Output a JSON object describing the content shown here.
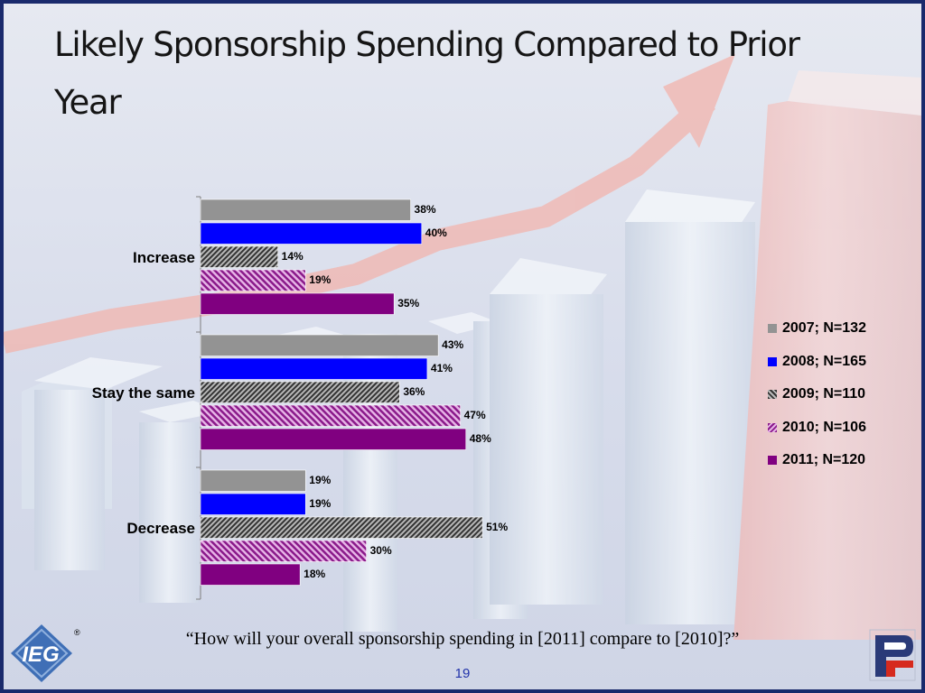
{
  "title": "Likely Sponsorship Spending Compared to Prior Year",
  "question": "“How will your overall sponsorship spending in [2011] compare to [2010]?”",
  "page_number": "19",
  "logos": {
    "left": "IEG",
    "left_mark": "®",
    "right": "PF"
  },
  "chart_data": {
    "type": "bar",
    "orientation": "horizontal",
    "categories": [
      "Increase",
      "Stay the same",
      "Decrease"
    ],
    "series": [
      {
        "name": "2007; N=132",
        "values": [
          38,
          43,
          19
        ],
        "color": "#939393",
        "pattern": "solid"
      },
      {
        "name": "2008; N=165",
        "values": [
          40,
          41,
          19
        ],
        "color": "#0000ff",
        "pattern": "solid"
      },
      {
        "name": "2009; N=110",
        "values": [
          14,
          36,
          51
        ],
        "color": "#444444",
        "pattern": "hatch-dark"
      },
      {
        "name": "2010; N=106",
        "values": [
          19,
          47,
          30
        ],
        "color": "#a020a0",
        "pattern": "hatch-purple"
      },
      {
        "name": "2011; N=120",
        "values": [
          35,
          48,
          18
        ],
        "color": "#800080",
        "pattern": "solid"
      }
    ],
    "value_suffix": "%",
    "xlim": [
      0,
      55
    ],
    "legend": "right",
    "grid": false
  }
}
